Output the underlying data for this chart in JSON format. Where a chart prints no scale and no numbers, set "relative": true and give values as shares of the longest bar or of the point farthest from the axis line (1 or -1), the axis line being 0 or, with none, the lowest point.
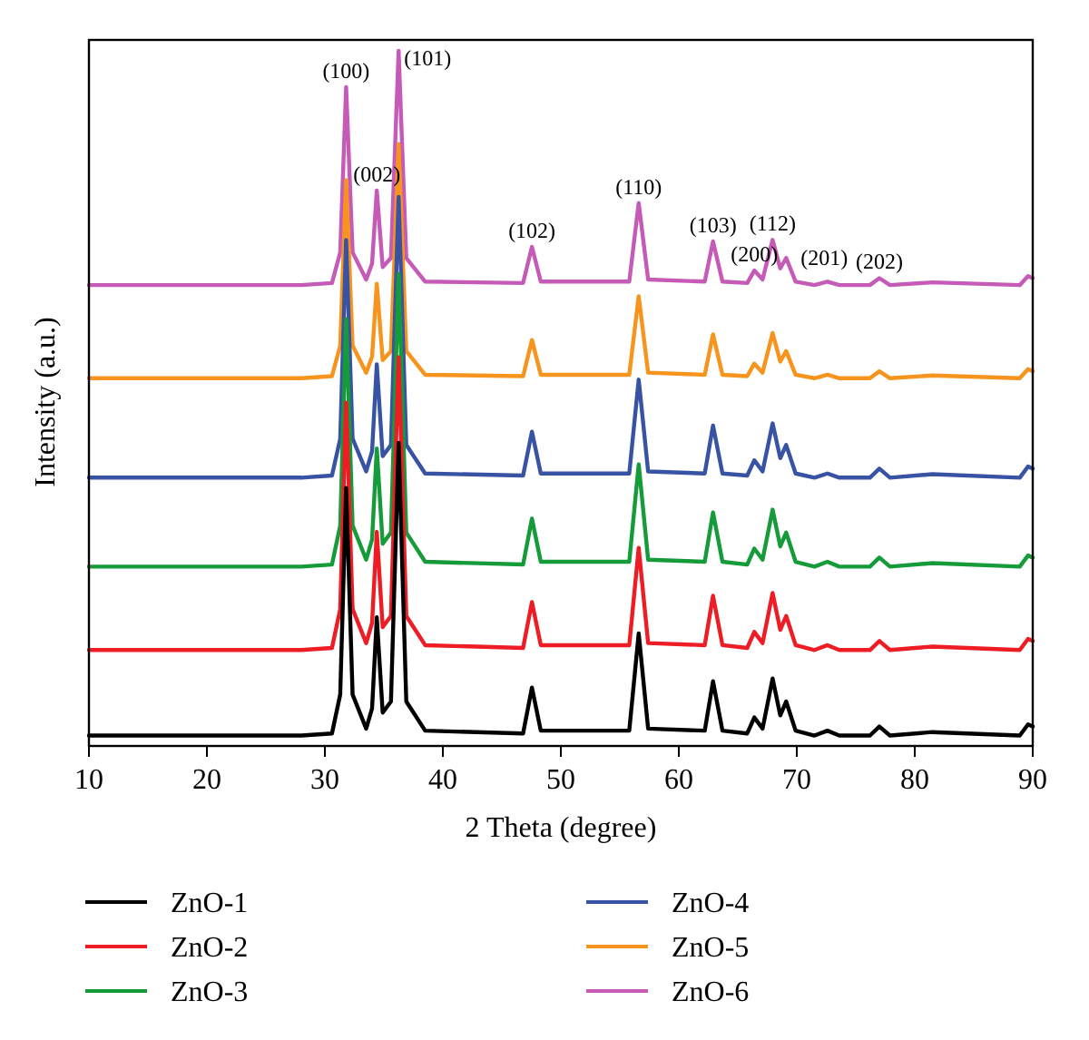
{
  "chart_data": {
    "type": "line",
    "relative": true,
    "xlabel": "2 Theta (degree)",
    "ylabel": "Intensity (a.u.)",
    "xlim": [
      10,
      90
    ],
    "xticks": [
      10,
      20,
      30,
      40,
      50,
      60,
      70,
      80,
      90
    ],
    "legend": "bottom",
    "line_style": "solid",
    "marker": "none",
    "grid": false,
    "x": [
      10,
      28,
      30.6,
      31.3,
      31.8,
      32.35,
      33.5,
      34.0,
      34.4,
      34.9,
      35.6,
      36.25,
      36.9,
      38.5,
      46.8,
      47.55,
      48.3,
      55.8,
      56.6,
      57.4,
      62.2,
      62.9,
      63.7,
      65.8,
      66.4,
      67.1,
      67.95,
      68.6,
      69.1,
      69.9,
      71.5,
      72.6,
      73.6,
      76.2,
      77.0,
      77.9,
      81.5,
      88.9,
      89.6,
      90
    ],
    "series": [
      {
        "name": "ZnO-1",
        "color": "#000000",
        "values": [
          0.015,
          0.015,
          0.018,
          0.074,
          0.371,
          0.074,
          0.025,
          0.054,
          0.185,
          0.048,
          0.064,
          0.436,
          0.064,
          0.022,
          0.018,
          0.084,
          0.022,
          0.022,
          0.162,
          0.025,
          0.022,
          0.093,
          0.022,
          0.018,
          0.041,
          0.025,
          0.097,
          0.044,
          0.064,
          0.022,
          0.015,
          0.022,
          0.015,
          0.015,
          0.028,
          0.015,
          0.02,
          0.015,
          0.031,
          0.028
        ]
      },
      {
        "name": "ZnO-2",
        "color": "#ee1c25",
        "values": [
          0.138,
          0.138,
          0.141,
          0.197,
          0.494,
          0.197,
          0.148,
          0.177,
          0.308,
          0.171,
          0.187,
          0.559,
          0.187,
          0.145,
          0.141,
          0.207,
          0.145,
          0.145,
          0.285,
          0.148,
          0.145,
          0.216,
          0.145,
          0.141,
          0.164,
          0.148,
          0.22,
          0.167,
          0.187,
          0.145,
          0.138,
          0.145,
          0.138,
          0.138,
          0.151,
          0.138,
          0.143,
          0.138,
          0.154,
          0.151
        ]
      },
      {
        "name": "ZnO-3",
        "color": "#169b3a",
        "values": [
          0.258,
          0.258,
          0.261,
          0.317,
          0.614,
          0.317,
          0.268,
          0.297,
          0.428,
          0.291,
          0.307,
          0.679,
          0.307,
          0.265,
          0.261,
          0.327,
          0.265,
          0.265,
          0.405,
          0.268,
          0.265,
          0.336,
          0.265,
          0.261,
          0.284,
          0.268,
          0.34,
          0.287,
          0.307,
          0.265,
          0.258,
          0.265,
          0.258,
          0.258,
          0.271,
          0.258,
          0.263,
          0.258,
          0.274,
          0.271
        ]
      },
      {
        "name": "ZnO-4",
        "color": "#3953a4",
        "values": [
          0.386,
          0.386,
          0.389,
          0.442,
          0.728,
          0.442,
          0.395,
          0.424,
          0.549,
          0.417,
          0.433,
          0.79,
          0.433,
          0.392,
          0.389,
          0.452,
          0.392,
          0.392,
          0.527,
          0.395,
          0.392,
          0.461,
          0.392,
          0.389,
          0.411,
          0.395,
          0.464,
          0.414,
          0.433,
          0.392,
          0.386,
          0.392,
          0.386,
          0.386,
          0.399,
          0.386,
          0.391,
          0.386,
          0.402,
          0.399
        ]
      },
      {
        "name": "ZnO-5",
        "color": "#f7941d",
        "values": [
          0.529,
          0.529,
          0.532,
          0.576,
          0.814,
          0.576,
          0.537,
          0.56,
          0.665,
          0.555,
          0.568,
          0.866,
          0.568,
          0.534,
          0.532,
          0.584,
          0.534,
          0.534,
          0.647,
          0.537,
          0.534,
          0.592,
          0.534,
          0.532,
          0.55,
          0.537,
          0.594,
          0.553,
          0.568,
          0.534,
          0.529,
          0.534,
          0.529,
          0.529,
          0.539,
          0.529,
          0.533,
          0.529,
          0.542,
          0.539
        ]
      },
      {
        "name": "ZnO-6",
        "color": "#c55bb7",
        "values": [
          0.663,
          0.663,
          0.666,
          0.71,
          0.948,
          0.71,
          0.671,
          0.694,
          0.799,
          0.689,
          0.702,
          1.0,
          0.702,
          0.668,
          0.666,
          0.718,
          0.668,
          0.668,
          0.781,
          0.671,
          0.668,
          0.726,
          0.668,
          0.666,
          0.684,
          0.671,
          0.728,
          0.687,
          0.702,
          0.668,
          0.663,
          0.668,
          0.663,
          0.663,
          0.673,
          0.663,
          0.667,
          0.663,
          0.676,
          0.673
        ]
      }
    ],
    "annotations": [
      {
        "text": "(100)",
        "x": 31.8,
        "y": 0.948
      },
      {
        "text": "(101)",
        "x": 36.25,
        "y": 1.0
      },
      {
        "text": "(002)",
        "x": 34.4,
        "y": 0.799
      },
      {
        "text": "(102)",
        "x": 47.55,
        "y": 0.718
      },
      {
        "text": "(110)",
        "x": 56.6,
        "y": 0.781
      },
      {
        "text": "(103)",
        "x": 62.9,
        "y": 0.726
      },
      {
        "text": "(200)",
        "x": 66.4,
        "y": 0.684
      },
      {
        "text": "(112)",
        "x": 67.95,
        "y": 0.728
      },
      {
        "text": "(201)",
        "x": 69.1,
        "y": 0.702
      },
      {
        "text": "(202)",
        "x": 77.0,
        "y": 0.673
      }
    ]
  }
}
